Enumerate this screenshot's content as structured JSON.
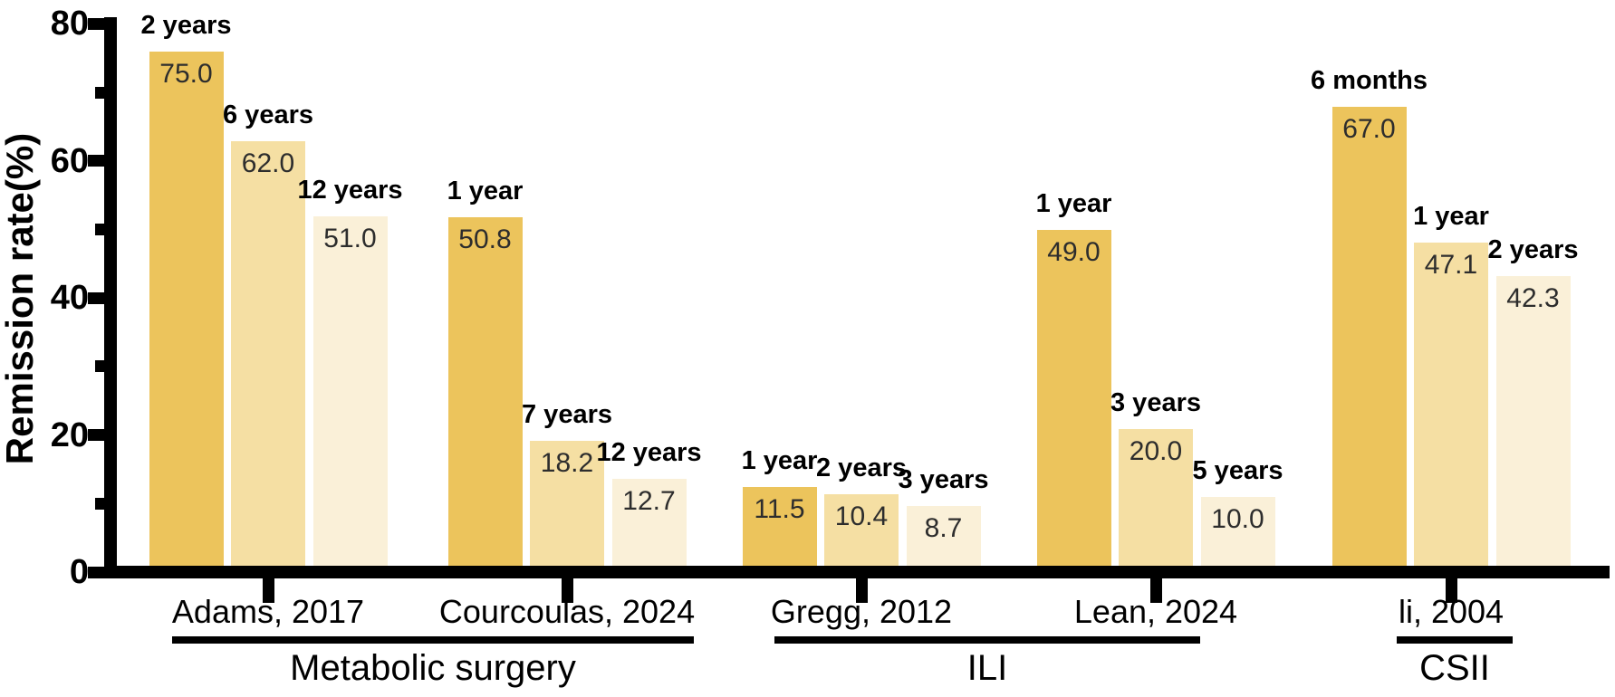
{
  "chart_data": {
    "type": "bar",
    "title": "",
    "ylabel": "Remission rate(%)",
    "xlabel": "",
    "ylim": [
      0,
      80
    ],
    "ytick_major": [
      0,
      20,
      40,
      60,
      80
    ],
    "ytick_minor": [
      10,
      30,
      50,
      70
    ],
    "grid": false,
    "legend_position": "none",
    "bar_palette": [
      "#ecc45c",
      "#f5dfa3",
      "#faf0d8"
    ],
    "axis_color": "#000000",
    "value_label_color": "#2d2d2d",
    "groups": [
      {
        "study": "Adams, 2017",
        "category": "Metabolic surgery",
        "bars": [
          {
            "timepoint": "2 years",
            "value": 75.0,
            "display": "75.0"
          },
          {
            "timepoint": "6 years",
            "value": 62.0,
            "display": "62.0"
          },
          {
            "timepoint": "12 years",
            "value": 51.0,
            "display": "51.0"
          }
        ]
      },
      {
        "study": "Courcoulas, 2024",
        "category": "Metabolic surgery",
        "bars": [
          {
            "timepoint": "1 year",
            "value": 50.8,
            "display": "50.8"
          },
          {
            "timepoint": "7 years",
            "value": 18.2,
            "display": "18.2"
          },
          {
            "timepoint": "12 years",
            "value": 12.7,
            "display": "12.7"
          }
        ]
      },
      {
        "study": "Gregg, 2012",
        "category": "ILI",
        "bars": [
          {
            "timepoint": "1 year",
            "value": 11.5,
            "display": "11.5"
          },
          {
            "timepoint": "2 years",
            "value": 10.4,
            "display": "10.4"
          },
          {
            "timepoint": "3 years",
            "value": 8.7,
            "display": "8.7"
          }
        ]
      },
      {
        "study": "Lean, 2024",
        "category": "ILI",
        "bars": [
          {
            "timepoint": "1 year",
            "value": 49.0,
            "display": "49.0"
          },
          {
            "timepoint": "3 years",
            "value": 20.0,
            "display": "20.0"
          },
          {
            "timepoint": "5 years",
            "value": 10.0,
            "display": "10.0"
          }
        ]
      },
      {
        "study": "li, 2004",
        "category": "CSII",
        "bars": [
          {
            "timepoint": "6 months",
            "value": 67.0,
            "display": "67.0"
          },
          {
            "timepoint": "1 year",
            "value": 47.1,
            "display": "47.1"
          },
          {
            "timepoint": "2 years",
            "value": 42.3,
            "display": "42.3"
          }
        ]
      }
    ],
    "category_groups": [
      {
        "label": "Metabolic surgery",
        "studies": [
          "Adams, 2017",
          "Courcoulas, 2024"
        ]
      },
      {
        "label": "ILI",
        "studies": [
          "Gregg, 2012",
          "Lean, 2024"
        ]
      },
      {
        "label": "CSII",
        "studies": [
          "li, 2004"
        ]
      }
    ]
  }
}
